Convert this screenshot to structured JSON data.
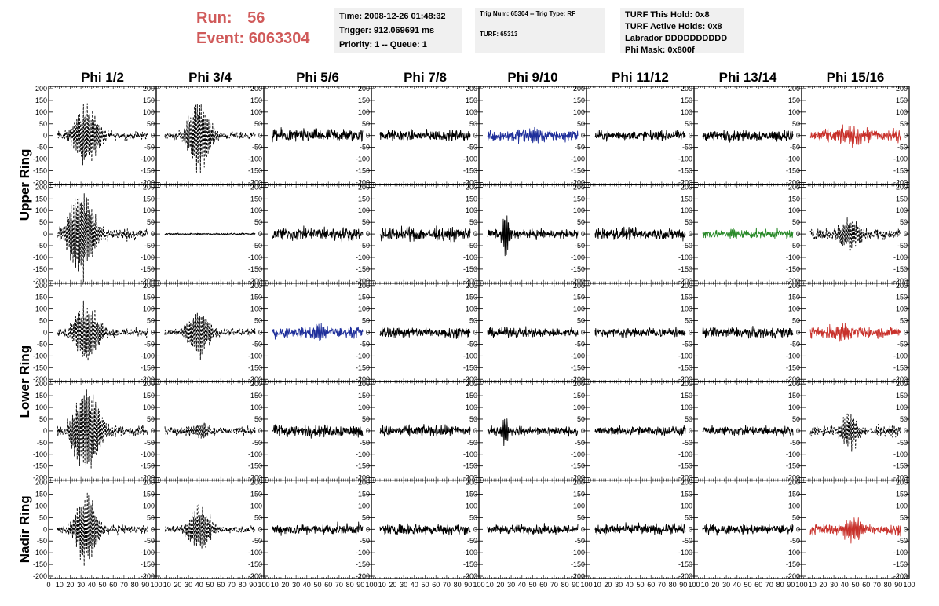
{
  "header": {
    "run_label": "Run:",
    "run_value": "56",
    "event_label": "Event:",
    "event_value": "6063304",
    "time_box": {
      "time": "Time: 2008-12-26 01:48:32",
      "trigger": "Trigger: 912.069691 ms",
      "priority": "Priority: 1 -- Queue: 1"
    },
    "trig_box": {
      "trig": "Trig Num: 65304 -- Trig Type: RF",
      "turf": "TURF: 65313"
    },
    "turf_box": {
      "hold": "TURF This Hold: 0x8",
      "active": "TURF Active Holds: 0x8",
      "labrador": "Labrador DDDDDDDDDD",
      "mask": "Phi Mask: 0x800f"
    }
  },
  "colors": {
    "header_red": "#d05a5a",
    "trace_black": "#000000",
    "trace_blue": "#1f2f9a",
    "trace_red": "#c8302a",
    "trace_green": "#2a8a2a",
    "box_bg": "#f0f0f0"
  },
  "chart_data": {
    "type": "line",
    "columns": [
      "Phi 1/2",
      "Phi 3/4",
      "Phi 5/6",
      "Phi 7/8",
      "Phi 9/10",
      "Phi 11/12",
      "Phi 13/14",
      "Phi 15/16"
    ],
    "ring_labels": [
      "Upper Ring",
      "Lower Ring",
      "Nadir Ring"
    ],
    "ylim": [
      -210,
      210
    ],
    "yticks": [
      200,
      150,
      100,
      50,
      0,
      -50,
      -100,
      -150,
      -200
    ],
    "xlim": [
      0,
      100
    ],
    "xticks": [
      0,
      10,
      20,
      30,
      40,
      50,
      60,
      70,
      80,
      90,
      100
    ],
    "panels": [
      [
        {
          "style": "dashed",
          "color": "black",
          "amp": 140,
          "center": 35,
          "width": 20,
          "noise": 15
        },
        {
          "style": "dashed",
          "color": "black",
          "amp": 170,
          "center": 40,
          "width": 18,
          "noise": 12
        },
        {
          "style": "solid",
          "color": "black",
          "amp": 0,
          "center": 50,
          "width": 20,
          "noise": 22
        },
        {
          "style": "solid",
          "color": "black",
          "amp": 0,
          "center": 50,
          "width": 20,
          "noise": 18
        },
        {
          "style": "solid",
          "color": "blue",
          "amp": 30,
          "center": 50,
          "width": 20,
          "noise": 20
        },
        {
          "style": "solid",
          "color": "black",
          "amp": 0,
          "center": 50,
          "width": 20,
          "noise": 16
        },
        {
          "style": "solid",
          "color": "black",
          "amp": 0,
          "center": 50,
          "width": 20,
          "noise": 18
        },
        {
          "style": "solid",
          "color": "red",
          "amp": 40,
          "center": 50,
          "width": 20,
          "noise": 22
        }
      ],
      [
        {
          "style": "dashed",
          "color": "black",
          "amp": 210,
          "center": 30,
          "width": 22,
          "noise": 20
        },
        {
          "style": "solid",
          "color": "black",
          "amp": 0,
          "center": 50,
          "width": 20,
          "noise": 3
        },
        {
          "style": "solid",
          "color": "black",
          "amp": 0,
          "center": 50,
          "width": 20,
          "noise": 22
        },
        {
          "style": "solid",
          "color": "black",
          "amp": 0,
          "center": 50,
          "width": 20,
          "noise": 22
        },
        {
          "style": "solid",
          "color": "black",
          "amp": 120,
          "center": 25,
          "width": 5,
          "noise": 15
        },
        {
          "style": "solid",
          "color": "black",
          "amp": 0,
          "center": 50,
          "width": 20,
          "noise": 20
        },
        {
          "style": "solid",
          "color": "green",
          "amp": 20,
          "center": 35,
          "width": 12,
          "noise": 15
        },
        {
          "style": "dashed",
          "color": "black",
          "amp": 70,
          "center": 45,
          "width": 18,
          "noise": 18
        }
      ],
      [
        {
          "style": "dashed",
          "color": "black",
          "amp": 140,
          "center": 35,
          "width": 20,
          "noise": 15
        },
        {
          "style": "dashed",
          "color": "black",
          "amp": 110,
          "center": 40,
          "width": 18,
          "noise": 12
        },
        {
          "style": "solid",
          "color": "blue",
          "amp": 40,
          "center": 50,
          "width": 10,
          "noise": 18
        },
        {
          "style": "solid",
          "color": "black",
          "amp": 0,
          "center": 50,
          "width": 20,
          "noise": 18
        },
        {
          "style": "solid",
          "color": "black",
          "amp": 0,
          "center": 50,
          "width": 20,
          "noise": 16
        },
        {
          "style": "solid",
          "color": "black",
          "amp": 0,
          "center": 50,
          "width": 20,
          "noise": 15
        },
        {
          "style": "solid",
          "color": "black",
          "amp": 0,
          "center": 50,
          "width": 20,
          "noise": 18
        },
        {
          "style": "solid",
          "color": "red",
          "amp": 40,
          "center": 35,
          "width": 15,
          "noise": 18
        }
      ],
      [
        {
          "style": "dashed",
          "color": "black",
          "amp": 210,
          "center": 35,
          "width": 22,
          "noise": 20
        },
        {
          "style": "dashed",
          "color": "black",
          "amp": 30,
          "center": 40,
          "width": 20,
          "noise": 15
        },
        {
          "style": "solid",
          "color": "black",
          "amp": 0,
          "center": 50,
          "width": 20,
          "noise": 20
        },
        {
          "style": "solid",
          "color": "black",
          "amp": 0,
          "center": 50,
          "width": 20,
          "noise": 18
        },
        {
          "style": "solid",
          "color": "black",
          "amp": 60,
          "center": 25,
          "width": 6,
          "noise": 15
        },
        {
          "style": "solid",
          "color": "black",
          "amp": 0,
          "center": 50,
          "width": 20,
          "noise": 15
        },
        {
          "style": "solid",
          "color": "black",
          "amp": 0,
          "center": 50,
          "width": 20,
          "noise": 16
        },
        {
          "style": "dashed",
          "color": "black",
          "amp": 80,
          "center": 45,
          "width": 14,
          "noise": 18
        }
      ],
      [
        {
          "style": "dashed",
          "color": "black",
          "amp": 160,
          "center": 35,
          "width": 18,
          "noise": 15
        },
        {
          "style": "dashed",
          "color": "black",
          "amp": 110,
          "center": 40,
          "width": 18,
          "noise": 12
        },
        {
          "style": "solid",
          "color": "black",
          "amp": 0,
          "center": 50,
          "width": 20,
          "noise": 18
        },
        {
          "style": "solid",
          "color": "black",
          "amp": 0,
          "center": 50,
          "width": 20,
          "noise": 18
        },
        {
          "style": "solid",
          "color": "black",
          "amp": 0,
          "center": 50,
          "width": 20,
          "noise": 16
        },
        {
          "style": "solid",
          "color": "black",
          "amp": 0,
          "center": 50,
          "width": 20,
          "noise": 18
        },
        {
          "style": "solid",
          "color": "black",
          "amp": 0,
          "center": 50,
          "width": 20,
          "noise": 16
        },
        {
          "style": "solid",
          "color": "red",
          "amp": 50,
          "center": 50,
          "width": 20,
          "noise": 18
        }
      ]
    ]
  }
}
